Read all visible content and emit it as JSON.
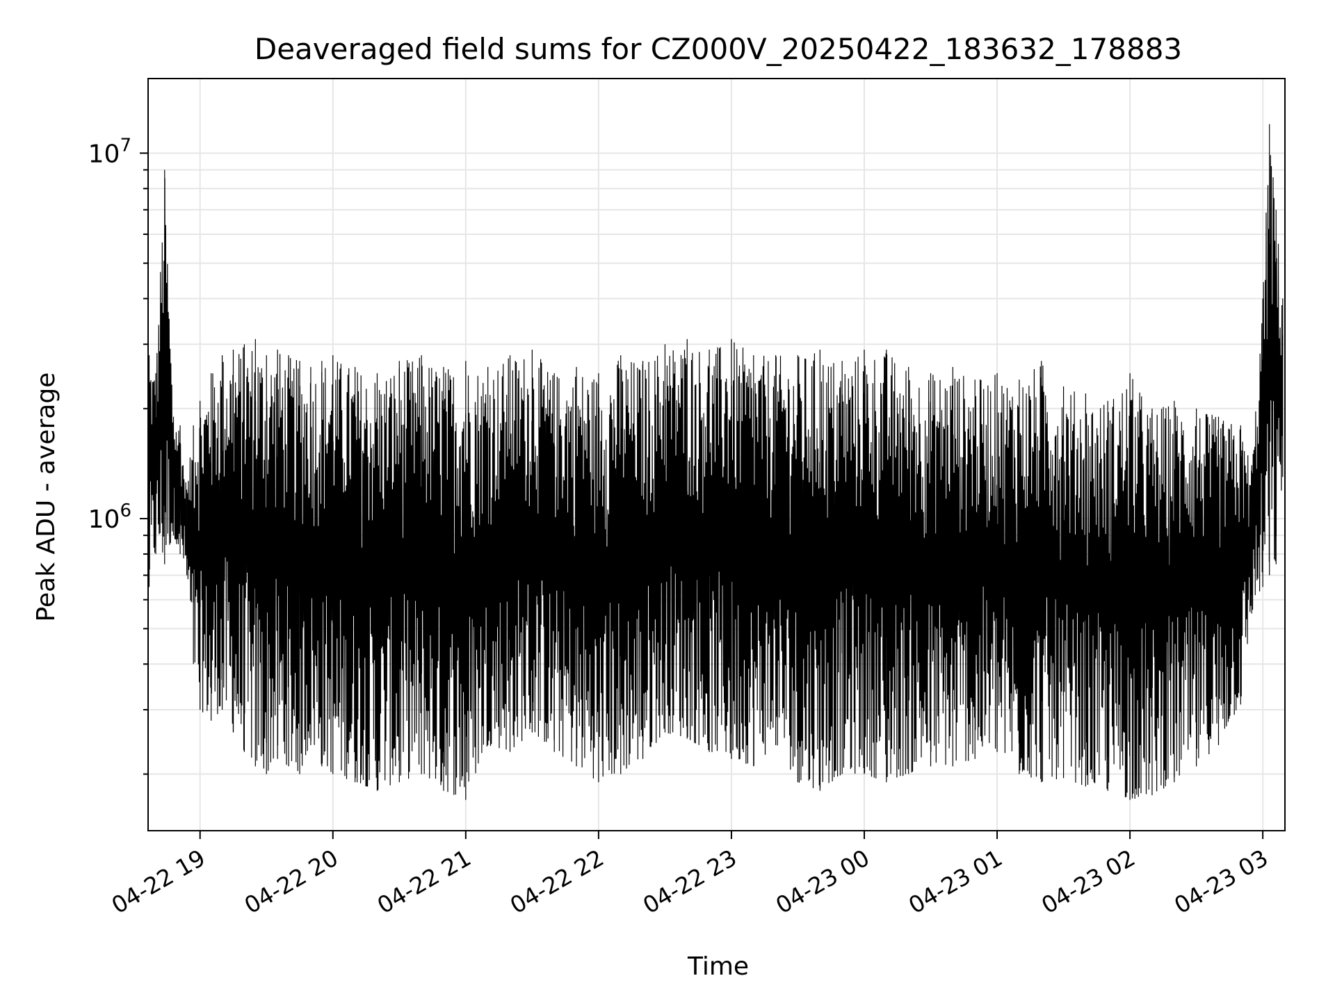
{
  "chart_data": {
    "type": "line",
    "title": "Deaveraged field sums for CZ000V_20250422_183632_178883",
    "xlabel": "Time",
    "ylabel": "Peak ADU - average",
    "yscale": "log",
    "ylim": [
      140000,
      16000000
    ],
    "xlim": [
      "2025-04-22 18:36:32",
      "2025-04-23 03:10:00"
    ],
    "grid": true,
    "line_color": "#000000",
    "x_ticks": [
      {
        "label": "04-22 19",
        "value": "2025-04-22 19:00"
      },
      {
        "label": "04-22 20",
        "value": "2025-04-22 20:00"
      },
      {
        "label": "04-22 21",
        "value": "2025-04-22 21:00"
      },
      {
        "label": "04-22 22",
        "value": "2025-04-22 22:00"
      },
      {
        "label": "04-22 23",
        "value": "2025-04-22 23:00"
      },
      {
        "label": "04-23 00",
        "value": "2025-04-23 00:00"
      },
      {
        "label": "04-23 01",
        "value": "2025-04-23 01:00"
      },
      {
        "label": "04-23 02",
        "value": "2025-04-23 02:00"
      },
      {
        "label": "04-23 03",
        "value": "2025-04-23 03:00"
      }
    ],
    "y_ticks": [
      {
        "base": "10",
        "exp": "6",
        "value": 1000000
      },
      {
        "base": "10",
        "exp": "7",
        "value": 10000000
      }
    ],
    "series": [
      {
        "x": [
          "2025-04-22 18:37",
          "2025-04-22 18:40",
          "2025-04-22 18:44",
          "2025-04-22 18:48",
          "2025-04-22 18:51",
          "2025-04-22 18:54",
          "2025-04-22 18:57",
          "2025-04-22 19:00",
          "2025-04-22 19:05",
          "2025-04-22 19:10",
          "2025-04-22 19:15",
          "2025-04-22 19:20",
          "2025-04-22 19:25",
          "2025-04-22 19:30",
          "2025-04-22 19:35",
          "2025-04-22 19:40",
          "2025-04-22 19:45",
          "2025-04-22 19:50",
          "2025-04-22 19:55",
          "2025-04-22 20:00",
          "2025-04-22 20:10",
          "2025-04-22 20:20",
          "2025-04-22 20:30",
          "2025-04-22 20:40",
          "2025-04-22 20:50",
          "2025-04-22 21:00",
          "2025-04-22 21:10",
          "2025-04-22 21:20",
          "2025-04-22 21:30",
          "2025-04-22 21:40",
          "2025-04-22 21:50",
          "2025-04-22 22:00",
          "2025-04-22 22:10",
          "2025-04-22 22:20",
          "2025-04-22 22:30",
          "2025-04-22 22:40",
          "2025-04-22 22:50",
          "2025-04-22 23:00",
          "2025-04-22 23:10",
          "2025-04-22 23:20",
          "2025-04-22 23:30",
          "2025-04-22 23:40",
          "2025-04-22 23:50",
          "2025-04-23 00:00",
          "2025-04-23 00:10",
          "2025-04-23 00:20",
          "2025-04-23 00:30",
          "2025-04-23 00:40",
          "2025-04-23 00:50",
          "2025-04-23 01:00",
          "2025-04-23 01:10",
          "2025-04-23 01:20",
          "2025-04-23 01:30",
          "2025-04-23 01:40",
          "2025-04-23 01:50",
          "2025-04-23 02:00",
          "2025-04-23 02:10",
          "2025-04-23 02:20",
          "2025-04-23 02:30",
          "2025-04-23 02:40",
          "2025-04-23 02:50",
          "2025-04-23 02:55",
          "2025-04-23 03:00",
          "2025-04-23 03:03",
          "2025-04-23 03:06",
          "2025-04-23 03:09"
        ],
        "y_high": [
          2800000,
          2500000,
          9000000,
          1900000,
          1800000,
          1200000,
          1800000,
          2100000,
          2500000,
          2800000,
          2900000,
          3000000,
          3100000,
          2800000,
          2900000,
          2800000,
          2700000,
          2600000,
          2700000,
          2800000,
          2600000,
          2500000,
          2700000,
          2800000,
          2600000,
          2700000,
          2600000,
          2800000,
          2900000,
          2500000,
          2600000,
          2500000,
          2800000,
          2700000,
          3000000,
          3100000,
          2900000,
          3100000,
          2800000,
          2800000,
          2800000,
          2900000,
          2700000,
          2900000,
          2900000,
          2600000,
          2500000,
          2600000,
          2400000,
          2500000,
          2400000,
          2700000,
          2300000,
          2200000,
          2100000,
          2500000,
          2000000,
          2100000,
          2000000,
          1900000,
          1800000,
          1400000,
          4000000,
          12000000,
          7000000,
          4000000
        ],
        "y_low": [
          650000,
          800000,
          750000,
          900000,
          800000,
          700000,
          400000,
          300000,
          280000,
          300000,
          260000,
          230000,
          210000,
          200000,
          220000,
          210000,
          200000,
          240000,
          210000,
          200000,
          190000,
          180000,
          190000,
          200000,
          180000,
          170000,
          240000,
          230000,
          260000,
          230000,
          210000,
          190000,
          200000,
          220000,
          260000,
          250000,
          230000,
          220000,
          210000,
          240000,
          190000,
          180000,
          200000,
          200000,
          190000,
          200000,
          210000,
          210000,
          220000,
          230000,
          200000,
          190000,
          195000,
          185000,
          180000,
          170000,
          175000,
          190000,
          210000,
          240000,
          310000,
          550000,
          650000,
          700000,
          750000,
          1300000
        ]
      }
    ]
  }
}
